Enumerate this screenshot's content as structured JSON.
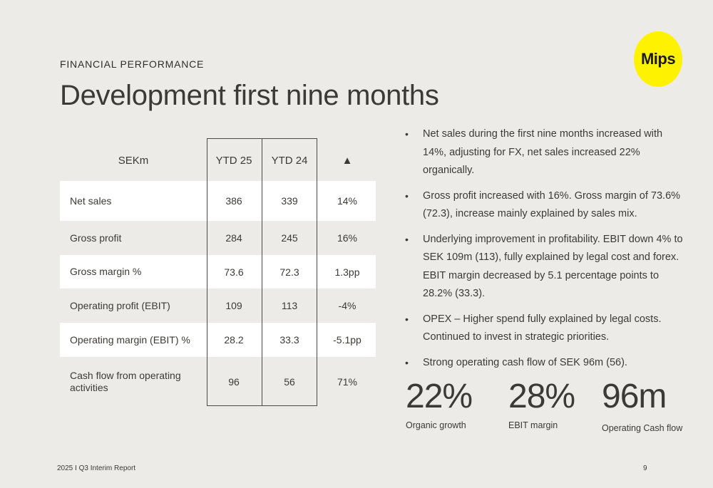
{
  "eyebrow": "FINANCIAL PERFORMANCE",
  "title": "Development first nine months",
  "logo_text": "Mips",
  "colors": {
    "background": "#ECEBE7",
    "logo": "#FFF200",
    "row_white": "#FFFFFF",
    "text": "#3B3A37"
  },
  "table": {
    "headers": [
      "SEKm",
      "YTD 25",
      "YTD 24",
      "▲"
    ],
    "rows": [
      {
        "label": "Net sales",
        "ytd25": "386",
        "ytd24": "339",
        "change": "14%"
      },
      {
        "label": "Gross profit",
        "ytd25": "284",
        "ytd24": "245",
        "change": "16%"
      },
      {
        "label": "Gross margin %",
        "ytd25": "73.6",
        "ytd24": "72.3",
        "change": "1.3pp"
      },
      {
        "label": "Operating profit (EBIT)",
        "ytd25": "109",
        "ytd24": "113",
        "change": "-4%"
      },
      {
        "label": "Operating margin (EBIT) %",
        "ytd25": "28.2",
        "ytd24": "33.3",
        "change": "-5.1pp"
      },
      {
        "label": "Cash flow from operating activities",
        "ytd25": "96",
        "ytd24": "56",
        "change": "71%"
      }
    ]
  },
  "bullets": [
    "Net sales during the first nine months increased with 14%, adjusting for FX, net sales increased 22% organically.",
    "Gross profit increased with 16%. Gross margin of 73.6% (72.3), increase mainly explained by sales mix.",
    "Underlying improvement in profitability. EBIT down 4% to SEK 109m (113), fully explained by legal cost and forex. EBIT margin decreased by 5.1 percentage points to 28.2% (33.3).",
    "OPEX – Higher spend fully explained by legal costs. Continued to invest in strategic priorities.",
    "Strong operating cash flow of SEK 96m (56)."
  ],
  "kpis": [
    {
      "value": "22%",
      "caption": "Organic growth"
    },
    {
      "value": "28%",
      "caption": "EBIT margin"
    },
    {
      "value": "96m",
      "caption": "Operating Cash flow"
    }
  ],
  "footer": {
    "report": "2025 I Q3 Interim Report",
    "page": "9"
  }
}
